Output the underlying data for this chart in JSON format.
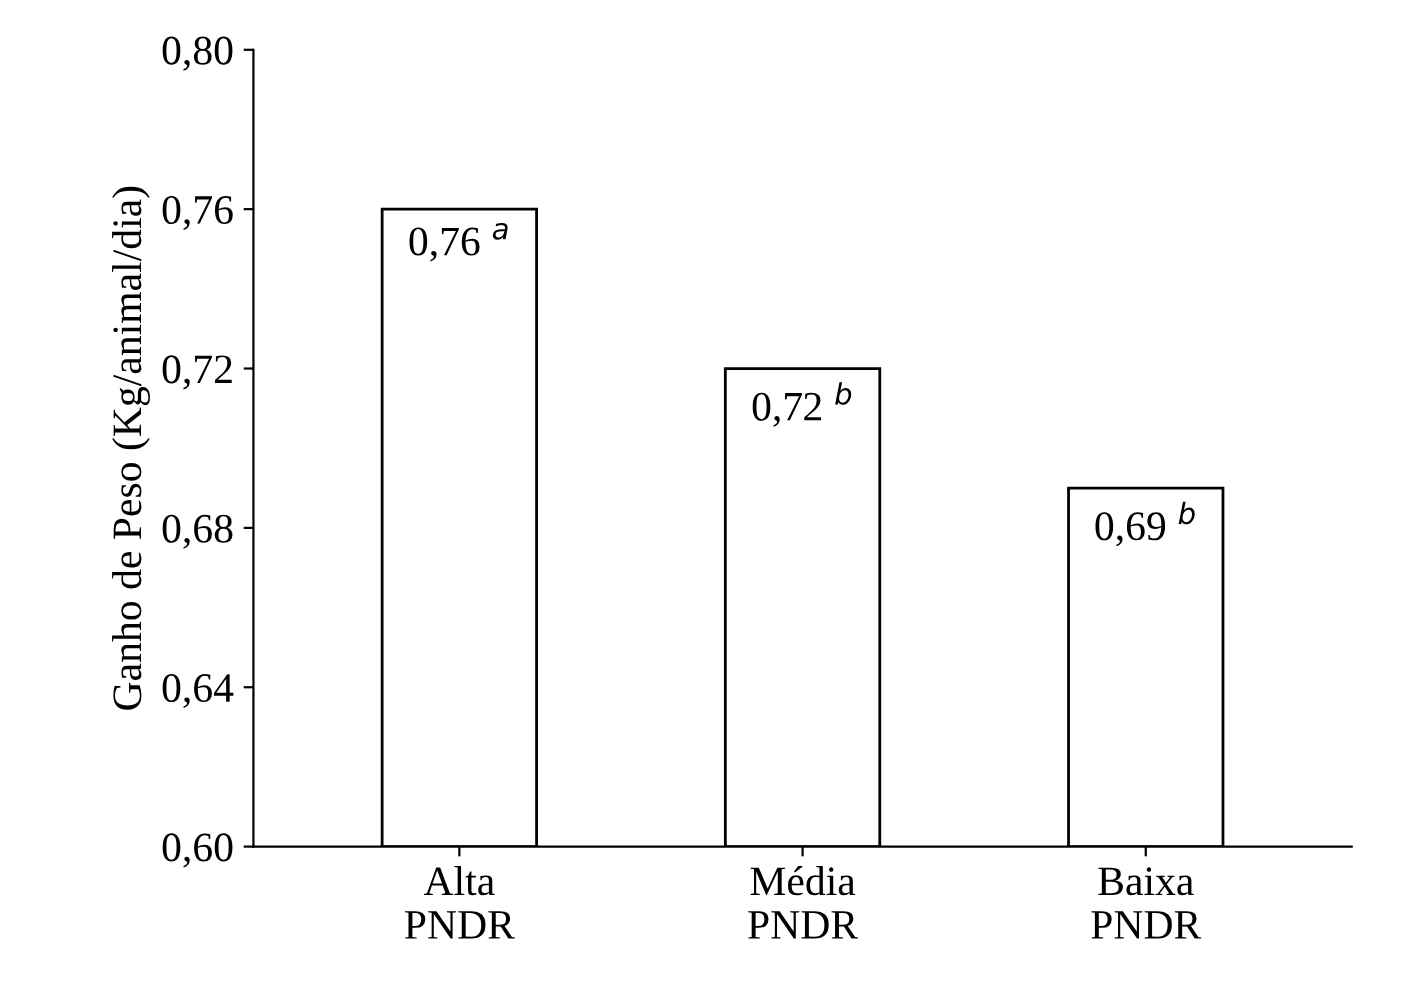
{
  "chart_data": {
    "type": "bar",
    "ylabel": "Ganho de Peso (Kg/animal/dia)",
    "categories": [
      "Alta\nPNDR",
      "Média\nPNDR",
      "Baixa\nPNDR"
    ],
    "values": [
      0.76,
      0.72,
      0.69
    ],
    "color": "#ffffff",
    "value_labels": [
      "0,76 $^{a}$",
      "0,72 $^{b}$",
      "0,69 $^{b}$"
    ],
    "ylim": [
      0.6,
      0.8
    ],
    "yticks": [
      {
        "value": 0.6,
        "label": "0,60"
      },
      {
        "value": 0.64,
        "label": "0,64"
      },
      {
        "value": 0.68,
        "label": "0,68"
      },
      {
        "value": 0.72,
        "label": "0,72"
      },
      {
        "value": 0.76,
        "label": "0,76"
      },
      {
        "value": 0.8,
        "label": "0,80"
      }
    ],
    "grid": false,
    "legend": false
  }
}
